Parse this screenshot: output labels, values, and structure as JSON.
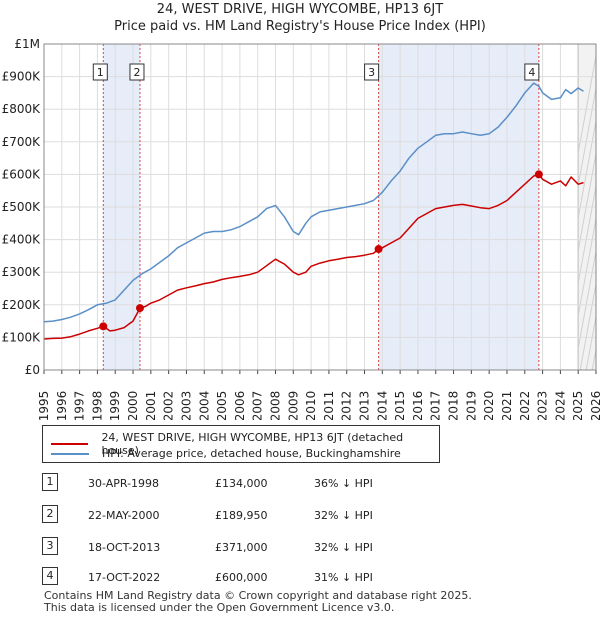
{
  "title_line1": "24, WEST DRIVE, HIGH WYCOMBE, HP13 6JT",
  "title_line2": "Price paid vs. HM Land Registry's House Price Index (HPI)",
  "colors": {
    "property": "#cc0000",
    "hpi": "#5b8fc7",
    "shade": "#dde6f5"
  },
  "chart_data": {
    "type": "line",
    "title": "24, WEST DRIVE, HIGH WYCOMBE, HP13 6JT — Price paid vs. HM Land Registry's House Price Index (HPI)",
    "xlim": [
      1995,
      2026
    ],
    "ylim": [
      0,
      1000000
    ],
    "x_ticks": [
      "1995",
      "1996",
      "1997",
      "1998",
      "1999",
      "2000",
      "2001",
      "2002",
      "2003",
      "2004",
      "2005",
      "2006",
      "2007",
      "2008",
      "2009",
      "2010",
      "2011",
      "2012",
      "2013",
      "2014",
      "2015",
      "2016",
      "2017",
      "2018",
      "2019",
      "2020",
      "2021",
      "2022",
      "2023",
      "2024",
      "2025",
      "2026"
    ],
    "y_ticks": [
      {
        "value": 0,
        "label": "£0"
      },
      {
        "value": 100000,
        "label": "£100K"
      },
      {
        "value": 200000,
        "label": "£200K"
      },
      {
        "value": 300000,
        "label": "£300K"
      },
      {
        "value": 400000,
        "label": "£400K"
      },
      {
        "value": 500000,
        "label": "£500K"
      },
      {
        "value": 600000,
        "label": "£600K"
      },
      {
        "value": 700000,
        "label": "£700K"
      },
      {
        "value": 800000,
        "label": "£800K"
      },
      {
        "value": 900000,
        "label": "£900K"
      },
      {
        "value": 1000000,
        "label": "£1M"
      }
    ],
    "shaded_ranges": [
      [
        1998.33,
        2000.39
      ],
      [
        2013.79,
        2022.79
      ]
    ],
    "future_start": 2025.0,
    "series": [
      {
        "name": "24, WEST DRIVE, HIGH WYCOMBE, HP13 6JT (detached house)",
        "color": "#cc0000",
        "x": [
          1995,
          1995.5,
          1996,
          1996.5,
          1997,
          1997.5,
          1998,
          1998.33,
          1998.7,
          1999,
          1999.5,
          2000,
          2000.39,
          2000.7,
          2001,
          2001.5,
          2002,
          2002.5,
          2003,
          2003.5,
          2004,
          2004.5,
          2005,
          2005.5,
          2006,
          2006.5,
          2007,
          2007.5,
          2008,
          2008.5,
          2009,
          2009.3,
          2009.7,
          2010,
          2010.5,
          2011,
          2011.5,
          2012,
          2012.5,
          2013,
          2013.5,
          2013.79,
          2014,
          2014.5,
          2015,
          2015.5,
          2016,
          2016.5,
          2017,
          2017.5,
          2018,
          2018.5,
          2019,
          2019.5,
          2020,
          2020.5,
          2021,
          2021.5,
          2022,
          2022.5,
          2022.79,
          2023,
          2023.5,
          2024,
          2024.3,
          2024.6,
          2025,
          2025.3
        ],
        "values": [
          95000,
          97000,
          98000,
          102000,
          110000,
          120000,
          128000,
          134000,
          120000,
          122000,
          130000,
          150000,
          189950,
          195000,
          205000,
          215000,
          230000,
          245000,
          252000,
          258000,
          265000,
          270000,
          278000,
          283000,
          287000,
          292000,
          300000,
          320000,
          340000,
          325000,
          300000,
          292000,
          300000,
          318000,
          328000,
          335000,
          340000,
          345000,
          348000,
          352000,
          358000,
          371000,
          375000,
          390000,
          405000,
          435000,
          465000,
          480000,
          495000,
          500000,
          505000,
          508000,
          503000,
          498000,
          495000,
          505000,
          520000,
          545000,
          570000,
          595000,
          600000,
          585000,
          570000,
          580000,
          565000,
          592000,
          570000,
          575000
        ]
      },
      {
        "name": "HPI: Average price, detached house, Buckinghamshire",
        "color": "#5b8fc7",
        "x": [
          1995,
          1995.5,
          1996,
          1996.5,
          1997,
          1997.5,
          1998,
          1998.5,
          1999,
          1999.5,
          2000,
          2000.5,
          2001,
          2001.5,
          2002,
          2002.5,
          2003,
          2003.5,
          2004,
          2004.5,
          2005,
          2005.5,
          2006,
          2006.5,
          2007,
          2007.5,
          2008,
          2008.5,
          2009,
          2009.3,
          2009.7,
          2010,
          2010.5,
          2011,
          2011.5,
          2012,
          2012.5,
          2013,
          2013.5,
          2014,
          2014.5,
          2015,
          2015.5,
          2016,
          2016.5,
          2017,
          2017.5,
          2018,
          2018.5,
          2019,
          2019.5,
          2020,
          2020.5,
          2021,
          2021.5,
          2022,
          2022.5,
          2022.8,
          2023,
          2023.5,
          2024,
          2024.3,
          2024.6,
          2025,
          2025.3
        ],
        "values": [
          148000,
          150000,
          155000,
          162000,
          172000,
          185000,
          200000,
          205000,
          215000,
          245000,
          275000,
          295000,
          310000,
          330000,
          350000,
          375000,
          390000,
          405000,
          420000,
          425000,
          425000,
          430000,
          440000,
          455000,
          470000,
          495000,
          505000,
          470000,
          425000,
          415000,
          450000,
          470000,
          485000,
          490000,
          495000,
          500000,
          505000,
          510000,
          520000,
          545000,
          580000,
          610000,
          650000,
          680000,
          700000,
          720000,
          725000,
          725000,
          730000,
          725000,
          720000,
          725000,
          745000,
          775000,
          810000,
          850000,
          880000,
          870000,
          850000,
          830000,
          835000,
          860000,
          848000,
          865000,
          855000
        ]
      }
    ],
    "sale_points": [
      {
        "label": "1",
        "x": 1998.33,
        "value": 134000
      },
      {
        "label": "2",
        "x": 2000.39,
        "value": 189950
      },
      {
        "label": "3",
        "x": 2013.79,
        "value": 371000
      },
      {
        "label": "4",
        "x": 2022.79,
        "value": 600000
      }
    ]
  },
  "legend": {
    "property": "24, WEST DRIVE, HIGH WYCOMBE, HP13 6JT (detached house)",
    "hpi": "HPI: Average price, detached house, Buckinghamshire"
  },
  "sales": [
    {
      "num": "1",
      "date": "30-APR-1998",
      "price": "£134,000",
      "hpi": "36% ↓ HPI"
    },
    {
      "num": "2",
      "date": "22-MAY-2000",
      "price": "£189,950",
      "hpi": "32% ↓ HPI"
    },
    {
      "num": "3",
      "date": "18-OCT-2013",
      "price": "£371,000",
      "hpi": "32% ↓ HPI"
    },
    {
      "num": "4",
      "date": "17-OCT-2022",
      "price": "£600,000",
      "hpi": "31% ↓ HPI"
    }
  ],
  "footer_line1": "Contains HM Land Registry data © Crown copyright and database right 2025.",
  "footer_line2": "This data is licensed under the Open Government Licence v3.0."
}
